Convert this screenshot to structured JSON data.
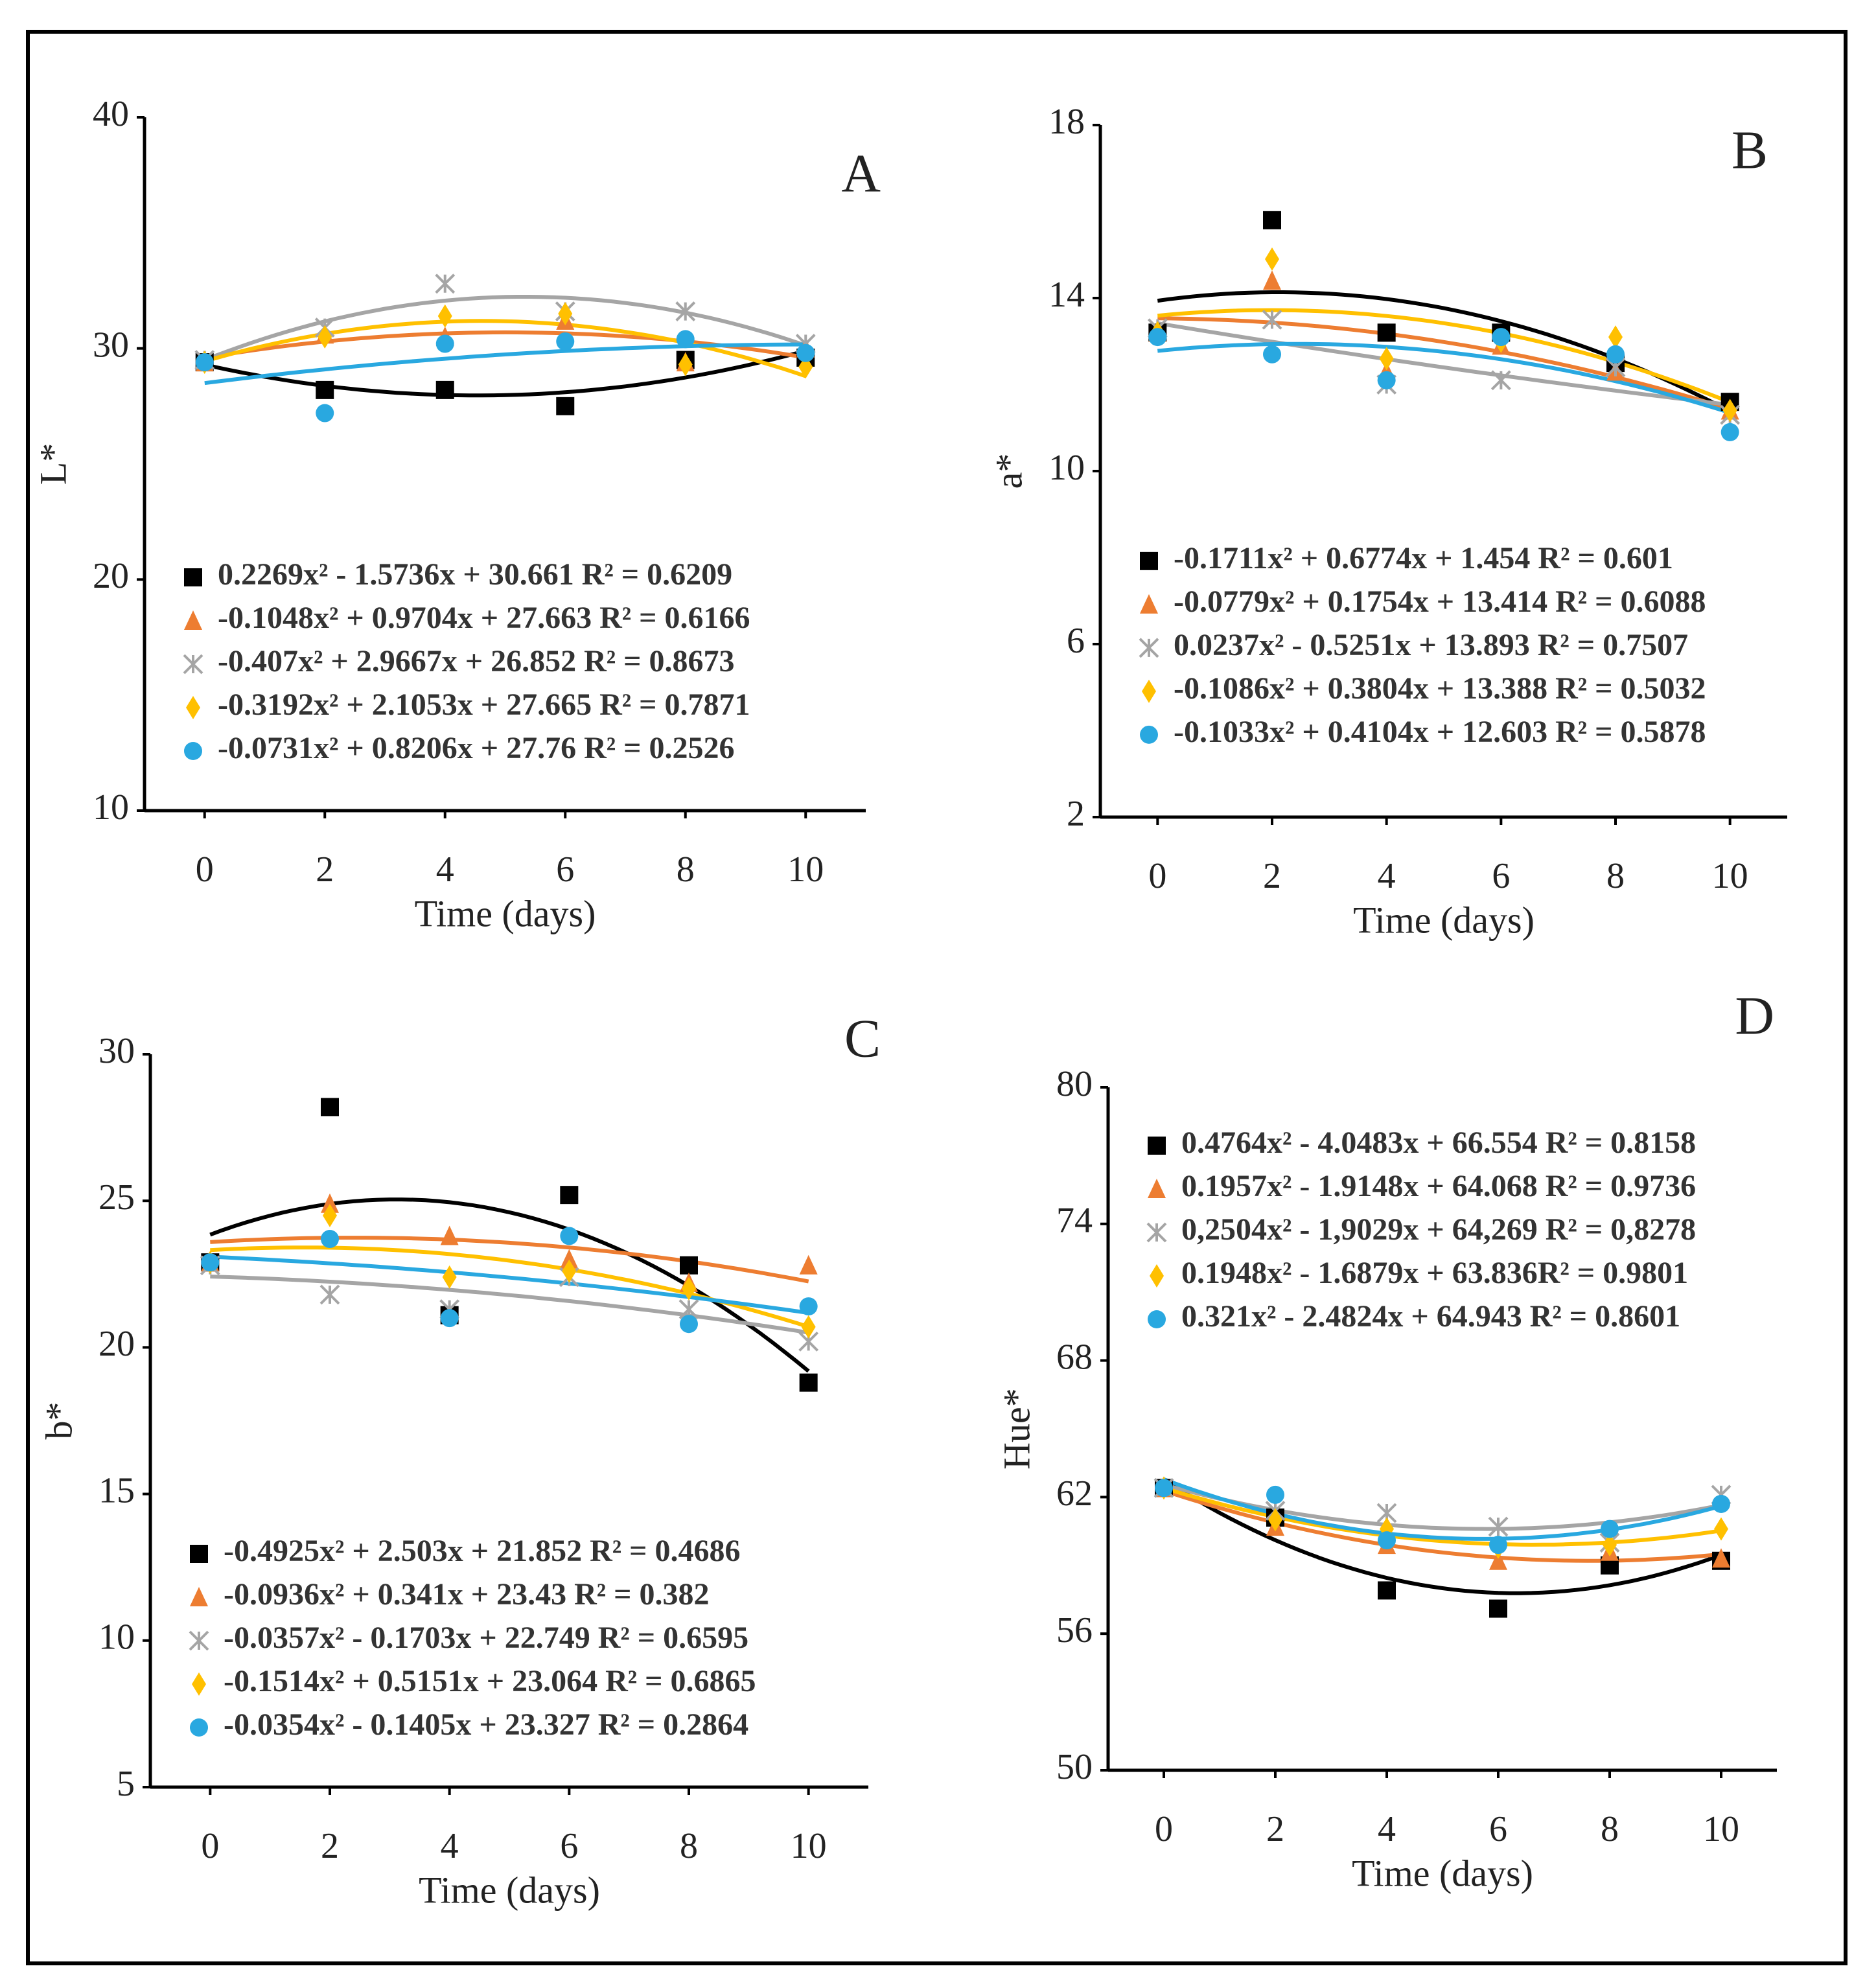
{
  "chart_data": [
    {
      "type": "scatter",
      "panel_label": "A",
      "x_label": "Time (days)",
      "y_label": "L*",
      "trendline": "quadratic",
      "legend_position": "lower left",
      "x": [
        0,
        2,
        4,
        6,
        8,
        10
      ],
      "xlim": [
        -1,
        11
      ],
      "xticks": [
        0,
        2,
        4,
        6,
        8,
        10
      ],
      "ylim": [
        10,
        40
      ],
      "yticks": [
        10,
        20,
        30,
        40
      ],
      "series": [
        {
          "name": "0.2269x² - 1.5736x + 30.661 R² = 0.6209",
          "color": "#000000",
          "marker": "square",
          "values": [
            29.4,
            28.2,
            28.2,
            27.5,
            29.5,
            29.6
          ]
        },
        {
          "name": "-0.1048x² + 0.9704x + 27.663 R² = 0.6166",
          "color": "#ed7d31",
          "marker": "triangle",
          "values": [
            29.4,
            30.6,
            30.5,
            31.2,
            29.4,
            30.0
          ]
        },
        {
          "name": "-0.407x² + 2.9667x + 26.852 R² = 0.8673",
          "color": "#a5a5a5",
          "marker": "star",
          "values": [
            29.5,
            30.9,
            32.8,
            31.6,
            31.6,
            30.2
          ]
        },
        {
          "name": "-0.3192x² + 2.1053x + 27.665 R² = 0.7871",
          "color": "#ffc000",
          "marker": "diamond",
          "values": [
            29.4,
            30.5,
            31.4,
            31.5,
            29.3,
            29.2
          ]
        },
        {
          "name": "-0.0731x² + 0.8206x + 27.76 R² = 0.2526",
          "color": "#29a8e0",
          "marker": "circle",
          "values": [
            29.4,
            27.2,
            30.2,
            30.3,
            30.4,
            29.8
          ]
        }
      ]
    },
    {
      "type": "scatter",
      "panel_label": "B",
      "x_label": "Time (days)",
      "y_label": "a*",
      "trendline": "quadratic",
      "legend_position": "center left",
      "x": [
        0,
        2,
        4,
        6,
        8,
        10
      ],
      "xlim": [
        -1,
        11
      ],
      "xticks": [
        0,
        2,
        4,
        6,
        8,
        10
      ],
      "ylim": [
        2,
        18
      ],
      "yticks": [
        2,
        6,
        10,
        14,
        18
      ],
      "series": [
        {
          "name": "-0.1711x² + 0.6774x + 1.454 R² = 0.601",
          "color": "#000000",
          "marker": "square",
          "values": [
            13.2,
            15.8,
            13.2,
            13.2,
            12.5,
            11.6
          ]
        },
        {
          "name": "-0.0779x² + 0.1754x + 13.414 R² = 0.6088",
          "color": "#ed7d31",
          "marker": "triangle",
          "values": [
            13.2,
            14.4,
            12.3,
            12.9,
            12.3,
            11.4
          ]
        },
        {
          "name": "0.0237x² - 0.5251x + 13.893 R² = 0.7507",
          "color": "#a5a5a5",
          "marker": "star",
          "values": [
            13.3,
            13.5,
            12.0,
            12.1,
            12.4,
            11.3
          ]
        },
        {
          "name": "-0.1086x² + 0.3804x + 13.388 R² = 0.5032",
          "color": "#ffc000",
          "marker": "diamond",
          "values": [
            13.2,
            14.9,
            12.6,
            13.0,
            13.1,
            11.4
          ]
        },
        {
          "name": "-0.1033x² + 0.4104x + 12.603 R² = 0.5878",
          "color": "#29a8e0",
          "marker": "circle",
          "values": [
            13.1,
            12.7,
            12.1,
            13.1,
            12.7,
            10.9
          ]
        }
      ]
    },
    {
      "type": "scatter",
      "panel_label": "C",
      "x_label": "Time (days)",
      "y_label": "b*",
      "trendline": "quadratic",
      "legend_position": "lower left",
      "x": [
        0,
        2,
        4,
        6,
        8,
        10
      ],
      "xlim": [
        -1,
        11
      ],
      "xticks": [
        0,
        2,
        4,
        6,
        8,
        10
      ],
      "ylim": [
        5,
        30
      ],
      "yticks": [
        5,
        10,
        15,
        20,
        25,
        30
      ],
      "series": [
        {
          "name": "-0.4925x² + 2.503x + 21.852 R² = 0.4686",
          "color": "#000000",
          "marker": "square",
          "values": [
            22.9,
            28.2,
            21.1,
            25.2,
            22.8,
            18.8
          ]
        },
        {
          "name": "-0.0936x² + 0.341x + 23.43 R² = 0.382",
          "color": "#ed7d31",
          "marker": "triangle",
          "values": [
            22.9,
            24.9,
            23.8,
            23.0,
            22.2,
            22.8
          ]
        },
        {
          "name": "-0.0357x² - 0.1703x + 22.749 R² = 0.6595",
          "color": "#a5a5a5",
          "marker": "star",
          "values": [
            22.8,
            21.8,
            21.3,
            22.4,
            21.3,
            20.2
          ]
        },
        {
          "name": "-0.1514x² + 0.5151x + 23.064 R² = 0.6865",
          "color": "#ffc000",
          "marker": "diamond",
          "values": [
            22.9,
            24.5,
            22.4,
            22.6,
            22.0,
            20.7
          ]
        },
        {
          "name": "-0.0354x² - 0.1405x + 23.327 R² = 0.2864",
          "color": "#29a8e0",
          "marker": "circle",
          "values": [
            22.9,
            23.7,
            21.0,
            23.8,
            20.8,
            21.4
          ]
        }
      ]
    },
    {
      "type": "scatter",
      "panel_label": "D",
      "x_label": "Time (days)",
      "y_label": "Hue*",
      "trendline": "quadratic",
      "legend_position": "upper left",
      "x": [
        0,
        2,
        4,
        6,
        8,
        10
      ],
      "xlim": [
        -1,
        11
      ],
      "xticks": [
        0,
        2,
        4,
        6,
        8,
        10
      ],
      "ylim": [
        50,
        80
      ],
      "yticks": [
        50,
        56,
        62,
        68,
        74,
        80
      ],
      "series": [
        {
          "name": "0.4764x² - 4.0483x + 66.554 R² = 0.8158",
          "color": "#000000",
          "marker": "square",
          "values": [
            62.4,
            61.1,
            57.9,
            57.1,
            59.0,
            59.2
          ]
        },
        {
          "name": "0.1957x² - 1.9148x + 64.068 R² = 0.9736",
          "color": "#ed7d31",
          "marker": "triangle",
          "values": [
            62.4,
            60.7,
            59.9,
            59.2,
            59.6,
            59.3
          ]
        },
        {
          "name": "0,2504x² - 1,9029x + 64,269 R² = 0,8278",
          "color": "#a5a5a5",
          "marker": "star",
          "values": [
            62.4,
            61.4,
            61.3,
            60.7,
            60.0,
            62.1
          ]
        },
        {
          "name": "0.1948x² - 1.6879x + 63.836R² = 0.9801",
          "color": "#ffc000",
          "marker": "diamond",
          "values": [
            62.4,
            61.0,
            60.6,
            59.8,
            59.9,
            60.6
          ]
        },
        {
          "name": "0.321x² - 2.4824x + 64.943 R² = 0.8601",
          "color": "#29a8e0",
          "marker": "circle",
          "values": [
            62.4,
            62.1,
            60.1,
            59.9,
            60.6,
            61.7
          ]
        }
      ]
    }
  ]
}
